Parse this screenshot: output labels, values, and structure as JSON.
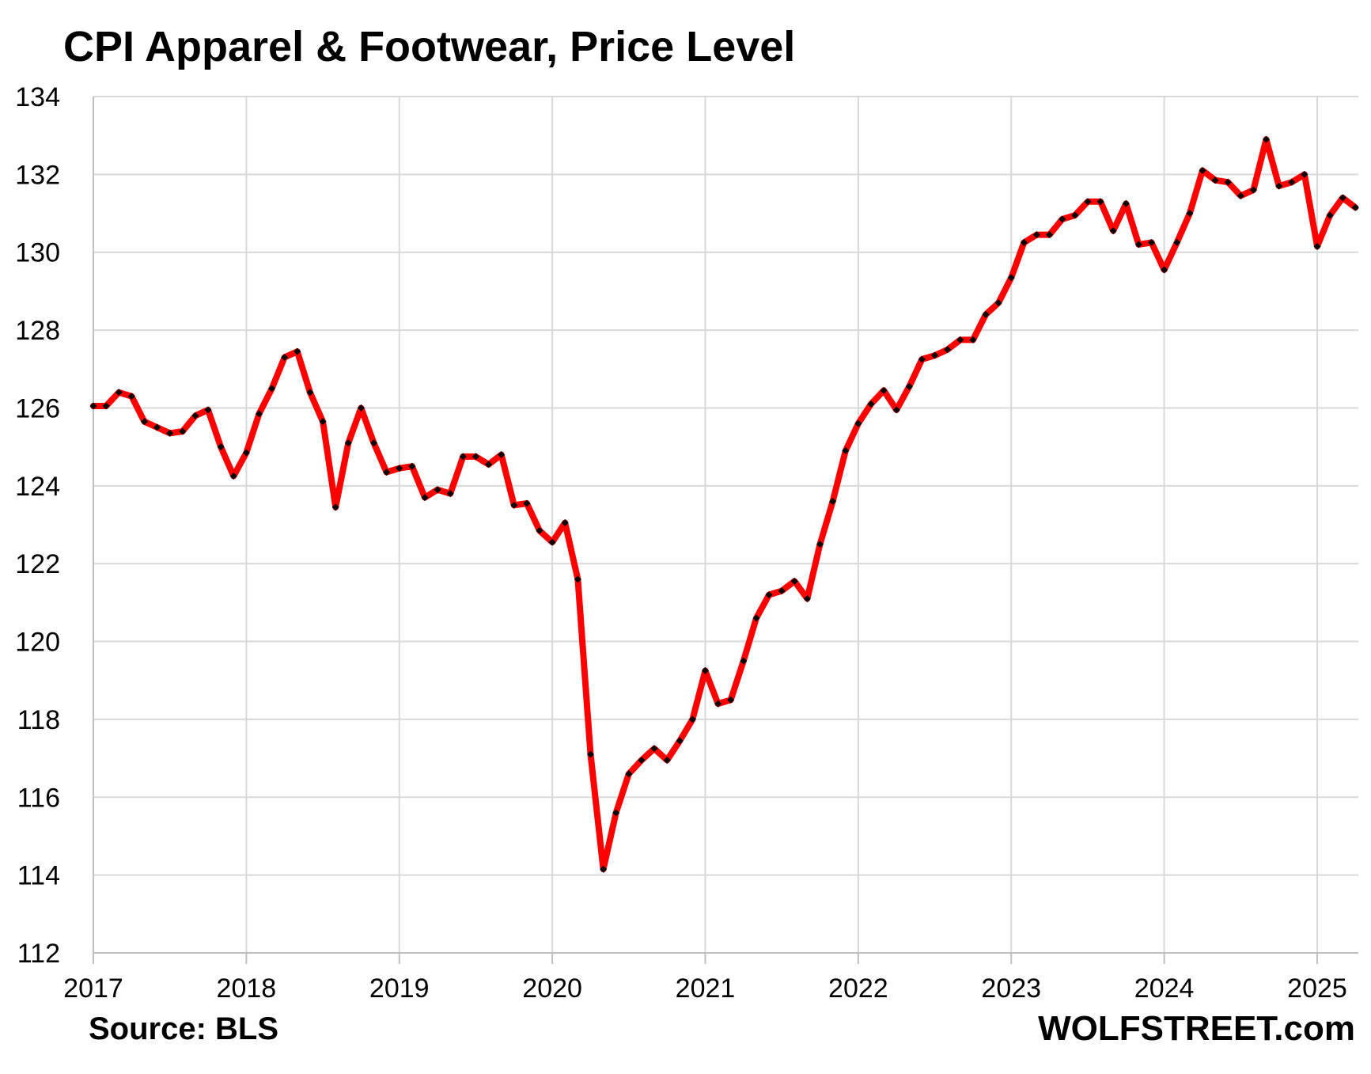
{
  "chart_data": {
    "type": "line",
    "title": "CPI Apparel & Footwear, Price Level",
    "xlabel": "",
    "ylabel": "",
    "ylim": [
      112,
      134
    ],
    "y_ticks": [
      "112",
      "114",
      "116",
      "118",
      "120",
      "122",
      "124",
      "126",
      "128",
      "130",
      "132",
      "134"
    ],
    "x_ticks": [
      "2017",
      "2018",
      "2019",
      "2020",
      "2021",
      "2022",
      "2023",
      "2024",
      "2025"
    ],
    "grid": true,
    "legend": "none",
    "series": [
      {
        "color": "#ff0000",
        "marker_color": "#000000",
        "x": [
          "2017-01",
          "2017-02",
          "2017-03",
          "2017-04",
          "2017-05",
          "2017-06",
          "2017-07",
          "2017-08",
          "2017-09",
          "2017-10",
          "2017-11",
          "2017-12",
          "2018-01",
          "2018-02",
          "2018-03",
          "2018-04",
          "2018-05",
          "2018-06",
          "2018-07",
          "2018-08",
          "2018-09",
          "2018-10",
          "2018-11",
          "2018-12",
          "2019-01",
          "2019-02",
          "2019-03",
          "2019-04",
          "2019-05",
          "2019-06",
          "2019-07",
          "2019-08",
          "2019-09",
          "2019-10",
          "2019-11",
          "2019-12",
          "2020-01",
          "2020-02",
          "2020-03",
          "2020-04",
          "2020-05",
          "2020-06",
          "2020-07",
          "2020-08",
          "2020-09",
          "2020-10",
          "2020-11",
          "2020-12",
          "2021-01",
          "2021-02",
          "2021-03",
          "2021-04",
          "2021-05",
          "2021-06",
          "2021-07",
          "2021-08",
          "2021-09",
          "2021-10",
          "2021-11",
          "2021-12",
          "2022-01",
          "2022-02",
          "2022-03",
          "2022-04",
          "2022-05",
          "2022-06",
          "2022-07",
          "2022-08",
          "2022-09",
          "2022-10",
          "2022-11",
          "2022-12",
          "2023-01",
          "2023-02",
          "2023-03",
          "2023-04",
          "2023-05",
          "2023-06",
          "2023-07",
          "2023-08",
          "2023-09",
          "2023-10",
          "2023-11",
          "2023-12",
          "2024-01",
          "2024-02",
          "2024-03",
          "2024-04",
          "2024-05",
          "2024-06",
          "2024-07",
          "2024-08",
          "2024-09",
          "2024-10",
          "2024-11",
          "2024-12",
          "2025-01",
          "2025-02",
          "2025-03",
          "2025-04"
        ],
        "values": [
          126.05,
          126.05,
          126.4,
          126.3,
          125.65,
          125.5,
          125.35,
          125.4,
          125.8,
          125.95,
          125.0,
          124.25,
          124.85,
          125.85,
          126.5,
          127.3,
          127.45,
          126.4,
          125.65,
          123.45,
          125.1,
          126.0,
          125.1,
          124.35,
          124.45,
          124.5,
          123.7,
          123.9,
          123.8,
          124.75,
          124.75,
          124.55,
          124.8,
          123.5,
          123.55,
          122.85,
          122.55,
          123.05,
          121.6,
          117.1,
          114.15,
          115.6,
          116.6,
          116.95,
          117.25,
          116.95,
          117.45,
          118.0,
          119.25,
          118.4,
          118.5,
          119.5,
          120.6,
          121.2,
          121.3,
          121.55,
          121.1,
          122.5,
          123.6,
          124.9,
          125.6,
          126.1,
          126.45,
          125.95,
          126.55,
          127.25,
          127.35,
          127.5,
          127.75,
          127.75,
          128.4,
          128.7,
          129.35,
          130.25,
          130.45,
          130.45,
          130.85,
          130.95,
          131.3,
          131.3,
          130.55,
          131.25,
          130.2,
          130.25,
          129.55,
          130.25,
          131.0,
          132.1,
          131.85,
          131.8,
          131.45,
          131.6,
          132.9,
          131.7,
          131.8,
          132.0,
          130.15,
          130.95,
          131.4,
          131.15
        ]
      }
    ]
  },
  "footer": {
    "source": "Source: BLS",
    "brand": "WOLFSTREET.com"
  }
}
